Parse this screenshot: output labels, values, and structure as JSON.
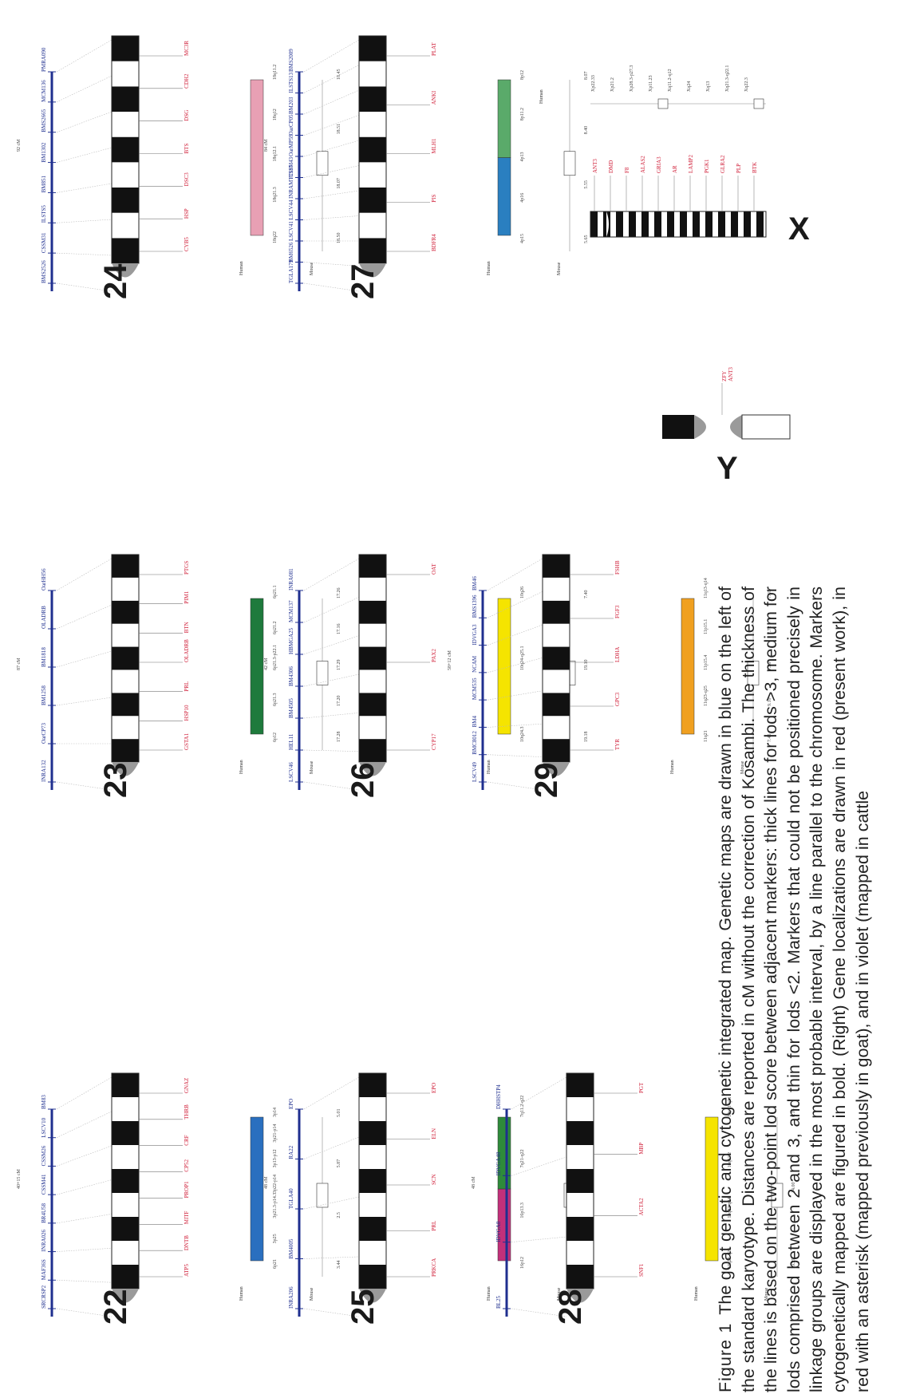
{
  "figure": {
    "panels": [
      {
        "chromosome": "22",
        "genetic_markers": [
          "SRCRSP2",
          "MAF36S",
          "INRA026",
          "BR4U58",
          "CSSM41",
          "CSSM26",
          "LSCV10",
          "BM83"
        ],
        "genetic_length": "40+15 cM",
        "loci_red": [
          "ATP5",
          "DNTB",
          "MITF",
          "PROP1",
          "CP52",
          "CRF",
          "THRB",
          "GNAZ"
        ],
        "human_bands": [
          "6p21",
          "3p25",
          "3p21.3-p14.3",
          "3p22-p14",
          "3p13-p12",
          "3p21-p14",
          "3p14"
        ],
        "mouse_values": [
          "3.44",
          "2.5",
          "5.87",
          "5.01"
        ]
      },
      {
        "chromosome": "23",
        "genetic_markers": [
          "INRA132",
          "OarCP73",
          "BM1258",
          "BM1818",
          "OLADRB",
          "OarHH56"
        ],
        "genetic_length": "87 cM",
        "loci_red": [
          "GSTA1",
          "HSP10",
          "PRL",
          "OLADRB",
          "BTN",
          "PIM1",
          "PTGS"
        ],
        "human_bands": [
          "6p12",
          "6p21.3",
          "6p21.3-p22.1",
          "6p21.2",
          "6p21.1"
        ],
        "mouse_values": [
          "17.28",
          "17.20",
          "17.29",
          "17.16",
          "17.26"
        ]
      },
      {
        "chromosome": "24",
        "genetic_markers": [
          "BMS2526",
          "CSSM31",
          "ILSTS5",
          "BM851",
          "BM1302",
          "BMS2665",
          "MCM136",
          "PMRA090"
        ],
        "genetic_length": "92 cM",
        "loci_red": [
          "CYB5",
          "HSP",
          "DSC3",
          "BTS",
          "DSG",
          "CDH2",
          "MC3R"
        ],
        "human_bands": [
          "18q22",
          "18q21.3",
          "18q12.1",
          "18q12",
          "18q11.2"
        ],
        "mouse_values": [
          "18.50",
          "18.07",
          "18.51",
          "18.45"
        ]
      },
      {
        "chromosome": "25",
        "genetic_markers": [
          "INRA206",
          "BM4005",
          "TGLA40",
          "RA22",
          "EPO"
        ],
        "genetic_length": "48 cM",
        "loci_red": [
          "PRKCA",
          "PRL",
          "SCN",
          "ELN",
          "EPO"
        ],
        "human_bands": [
          "16p12",
          "16p13.3",
          "7q21-q22",
          "7q11.2-q22"
        ],
        "mouse_values": [
          "16.47",
          "16.88",
          "16.48",
          "16.32",
          "5.75",
          "5.65"
        ]
      },
      {
        "chromosome": "26",
        "genetic_markers": [
          "LSCV46",
          "HEL11",
          "BM4505",
          "BM4306",
          "HBMGA25",
          "MCM137",
          "INRA081"
        ],
        "genetic_length": "42 cM",
        "loci_red": [
          "CYP17",
          "PAX2",
          "OAT"
        ],
        "human_bands": [
          "10q24.3",
          "10q24-q25.1",
          "10q26"
        ],
        "mouse_values": [
          "19.18",
          "19.10",
          "7.40"
        ]
      },
      {
        "chromosome": "27",
        "genetic_markers": [
          "TGLA179",
          "BM6526",
          "LSCV41",
          "LSCV44",
          "INRAMTT187",
          "CSSM43",
          "OarMP59",
          "OarCP05",
          "BM203",
          "ILSTS13",
          "BMS2009"
        ],
        "genetic_length": "84 cM",
        "loci_red": [
          "BDFR4",
          "PIS",
          "MLH1",
          "ANKI",
          "PLAT"
        ],
        "human_bands": [
          "4p15",
          "4p16",
          "4p13",
          "8p11.2",
          "8p12"
        ],
        "mouse_values": [
          "5.65",
          "5.55",
          "8.40",
          "8.07"
        ]
      },
      {
        "chromosome": "28",
        "genetic_markers": [
          "BL25",
          "IDVGA8",
          "IDVGA48",
          "DHHSTP4"
        ],
        "genetic_length": "48 cM",
        "loci_red": [
          "SNF1",
          "ACTA2",
          "MBP",
          "PGT"
        ],
        "human_bands": [
          "10q21-q23",
          "10q22-q24",
          "10q11.2",
          "10p11-q11"
        ],
        "mouse_values": [
          "19.29",
          "14.00",
          "6.16"
        ]
      },
      {
        "chromosome": "29",
        "genetic_markers": [
          "LSCV49",
          "BMC8012",
          "BM4",
          "MCM535",
          "NCAM",
          "IDVGA3",
          "BMS1396",
          "BM46"
        ],
        "genetic_length": "58+12 cM",
        "loci_red": [
          "TYR",
          "GPC3",
          "LDHA",
          "FGF3",
          "FSHB"
        ],
        "human_bands": [
          "11q21",
          "11q23-q25",
          "11p15.4",
          "11p15.1",
          "11q13-q14"
        ],
        "mouse_values": [
          "7.45",
          "9.10",
          "7.29",
          "7.72",
          "7.69"
        ]
      },
      {
        "chromosome": "Y",
        "loci_red": [
          "ZFY",
          "ANT3"
        ]
      },
      {
        "chromosome": "X",
        "loci_red": [
          "ANT3",
          "DMD",
          "F8",
          "ALAS2",
          "GRIA3",
          "AR",
          "LAMP2",
          "PGK1",
          "GLRA2",
          "PLP",
          "BTK"
        ],
        "human_bands": [
          "Xp22.33",
          "Xp21.2",
          "Xp28.3-p27.3",
          "Xp11.23",
          "Xq11.2-q12",
          "Xq24",
          "Xq13",
          "Xq21.3-q22.1",
          "Xq22.3"
        ]
      }
    ],
    "column_headers": {
      "human": "Human",
      "mouse": "Mouse"
    }
  },
  "caption": {
    "label": "Figure 1",
    "text": "The goat genetic and cytogenetic integrated map. Genetic maps are drawn in blue on the left of the standard karyotype. Distances are reported in cM without the correction of Kosambi. The thickness of the lines is based on the two-point lod score between adjacent markers: thick lines for lods >3, medium for lods comprised between 2 and 3, and thin for lods <2. Markers that could not be positioned precisely in linkage groups are displayed in the most probable interval, by a line parallel to the chromosome. Markers cytogenetically mapped are figured in bold. (Right) Gene localizations are drawn in red (present work), in red with an asterisk (mapped previously in goat), and in violet (mapped in cattle"
  },
  "colors": {
    "genetic_map": "#1f2f8f",
    "gene_loci": "#d0203a",
    "violet": "#7030a0",
    "band_dark": "#111111",
    "centromere": "#9a9a9a",
    "hsa22": "#2a6fbf",
    "hsa23": "#1e7a3c",
    "hsa24": "#e8a0b4",
    "hsa25a": "#c2307a",
    "hsa25b": "#2e8b3a",
    "hsa26": "#f5e400",
    "hsa27a": "#2a7fc0",
    "hsa27b": "#5aaa6a",
    "hsa28": "#f5e400",
    "hsa29": "#f0a020"
  }
}
